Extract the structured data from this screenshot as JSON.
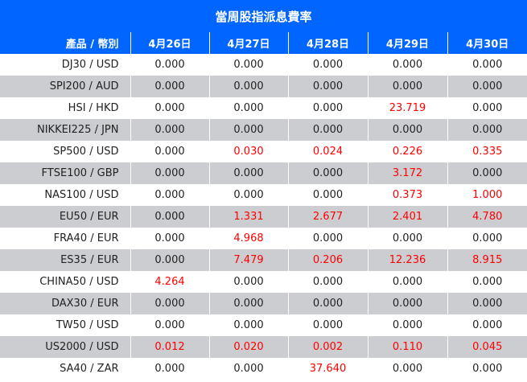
{
  "title": "當周股指派息費率",
  "header": {
    "product": "產品 / 幣別",
    "dates": [
      "4月26日",
      "4月27日",
      "4月28日",
      "4月29日",
      "4月30日"
    ]
  },
  "colors": {
    "header_bg": "#0066ff",
    "stripe_bg": "#cccdd1",
    "highlight": "#ff0000",
    "text": "#222222"
  },
  "rows": [
    {
      "product": "DJ30 / USD",
      "values": [
        "0.000",
        "0.000",
        "0.000",
        "0.000",
        "0.000"
      ]
    },
    {
      "product": "SPI200 / AUD",
      "values": [
        "0.000",
        "0.000",
        "0.000",
        "0.000",
        "0.000"
      ]
    },
    {
      "product": "HSI / HKD",
      "values": [
        "0.000",
        "0.000",
        "0.000",
        "23.719",
        "0.000"
      ]
    },
    {
      "product": "NIKKEI225 / JPN",
      "values": [
        "0.000",
        "0.000",
        "0.000",
        "0.000",
        "0.000"
      ]
    },
    {
      "product": "SP500 / USD",
      "values": [
        "0.000",
        "0.030",
        "0.024",
        "0.226",
        "0.335"
      ]
    },
    {
      "product": "FTSE100 / GBP",
      "values": [
        "0.000",
        "0.000",
        "0.000",
        "3.172",
        "0.000"
      ]
    },
    {
      "product": "NAS100 / USD",
      "values": [
        "0.000",
        "0.000",
        "0.000",
        "0.373",
        "1.000"
      ]
    },
    {
      "product": "EU50 / EUR",
      "values": [
        "0.000",
        "1.331",
        "2.677",
        "2.401",
        "4.780"
      ]
    },
    {
      "product": "FRA40 / EUR",
      "values": [
        "0.000",
        "4.968",
        "0.000",
        "0.000",
        "0.000"
      ]
    },
    {
      "product": "ES35 / EUR",
      "values": [
        "0.000",
        "7.479",
        "0.206",
        "12.236",
        "8.915"
      ]
    },
    {
      "product": "CHINA50 / USD",
      "values": [
        "4.264",
        "0.000",
        "0.000",
        "0.000",
        "0.000"
      ]
    },
    {
      "product": "DAX30 / EUR",
      "values": [
        "0.000",
        "0.000",
        "0.000",
        "0.000",
        "0.000"
      ]
    },
    {
      "product": "TW50 / USD",
      "values": [
        "0.000",
        "0.000",
        "0.000",
        "0.000",
        "0.000"
      ]
    },
    {
      "product": "US2000 / USD",
      "values": [
        "0.012",
        "0.020",
        "0.002",
        "0.110",
        "0.045"
      ]
    },
    {
      "product": "SA40 / ZAR",
      "values": [
        "0.000",
        "0.000",
        "37.640",
        "0.000",
        "0.000"
      ]
    }
  ]
}
